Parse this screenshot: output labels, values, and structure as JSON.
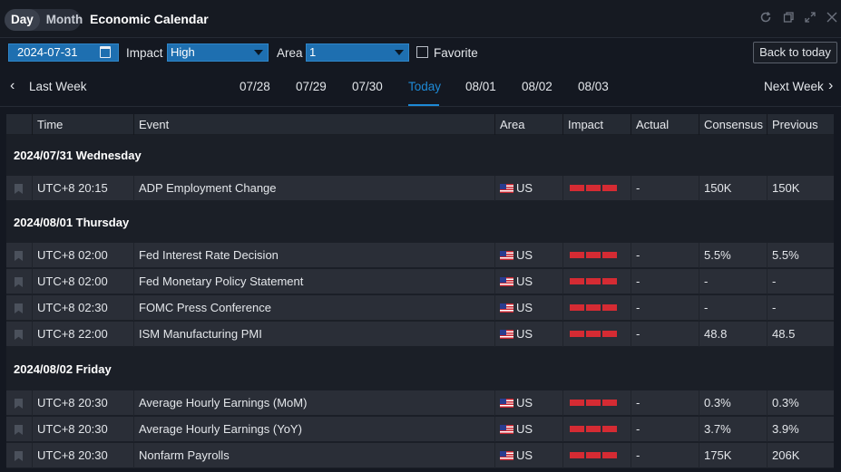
{
  "toggle": {
    "day": "Day",
    "month": "Month"
  },
  "title": "Economic Calendar",
  "filters": {
    "date": "2024-07-31",
    "impact_label": "Impact",
    "impact_value": "High",
    "area_label": "Area",
    "area_value": "1",
    "favorite_label": "Favorite",
    "back_to_today": "Back to today"
  },
  "week_nav": {
    "last_week": "Last Week",
    "next_week": "Next Week",
    "days": [
      "07/28",
      "07/29",
      "07/30",
      "Today",
      "08/01",
      "08/02",
      "08/03"
    ],
    "active_day": "Today"
  },
  "table": {
    "headers": [
      "Time",
      "Event",
      "Area",
      "Impact",
      "Actual",
      "Consensus",
      "Previous"
    ],
    "groups": [
      {
        "date": "2024/07/31 Wednesday",
        "rows": [
          {
            "time": "UTC+8 20:15",
            "event": "ADP Employment Change",
            "area": "US",
            "impact": 3,
            "actual": "-",
            "consensus": "150K",
            "previous": "150K"
          }
        ]
      },
      {
        "date": "2024/08/01 Thursday",
        "rows": [
          {
            "time": "UTC+8 02:00",
            "event": "Fed Interest Rate Decision",
            "area": "US",
            "impact": 3,
            "actual": "-",
            "consensus": "5.5%",
            "previous": "5.5%"
          },
          {
            "time": "UTC+8 02:00",
            "event": "Fed Monetary Policy Statement",
            "area": "US",
            "impact": 3,
            "actual": "-",
            "consensus": "-",
            "previous": "-"
          },
          {
            "time": "UTC+8 02:30",
            "event": "FOMC Press Conference",
            "area": "US",
            "impact": 3,
            "actual": "-",
            "consensus": "-",
            "previous": "-"
          },
          {
            "time": "UTC+8 22:00",
            "event": "ISM Manufacturing PMI",
            "area": "US",
            "impact": 3,
            "actual": "-",
            "consensus": "48.8",
            "previous": "48.5"
          }
        ]
      },
      {
        "date": "2024/08/02 Friday",
        "rows": [
          {
            "time": "UTC+8 20:30",
            "event": "Average Hourly Earnings (MoM)",
            "area": "US",
            "impact": 3,
            "actual": "-",
            "consensus": "0.3%",
            "previous": "0.3%"
          },
          {
            "time": "UTC+8 20:30",
            "event": "Average Hourly Earnings (YoY)",
            "area": "US",
            "impact": 3,
            "actual": "-",
            "consensus": "3.7%",
            "previous": "3.9%"
          },
          {
            "time": "UTC+8 20:30",
            "event": "Nonfarm Payrolls",
            "area": "US",
            "impact": 3,
            "actual": "-",
            "consensus": "175K",
            "previous": "206K"
          }
        ]
      }
    ]
  },
  "colors": {
    "accent": "#1e8ad6",
    "input_bg": "#1e6fb0",
    "impact": "#d52b33"
  },
  "icons": [
    "calendar-icon",
    "refresh-icon",
    "restore-icon",
    "maximize-icon",
    "close-icon",
    "chevron-left-icon",
    "chevron-right-icon",
    "bookmark-icon",
    "us-flag-icon"
  ]
}
